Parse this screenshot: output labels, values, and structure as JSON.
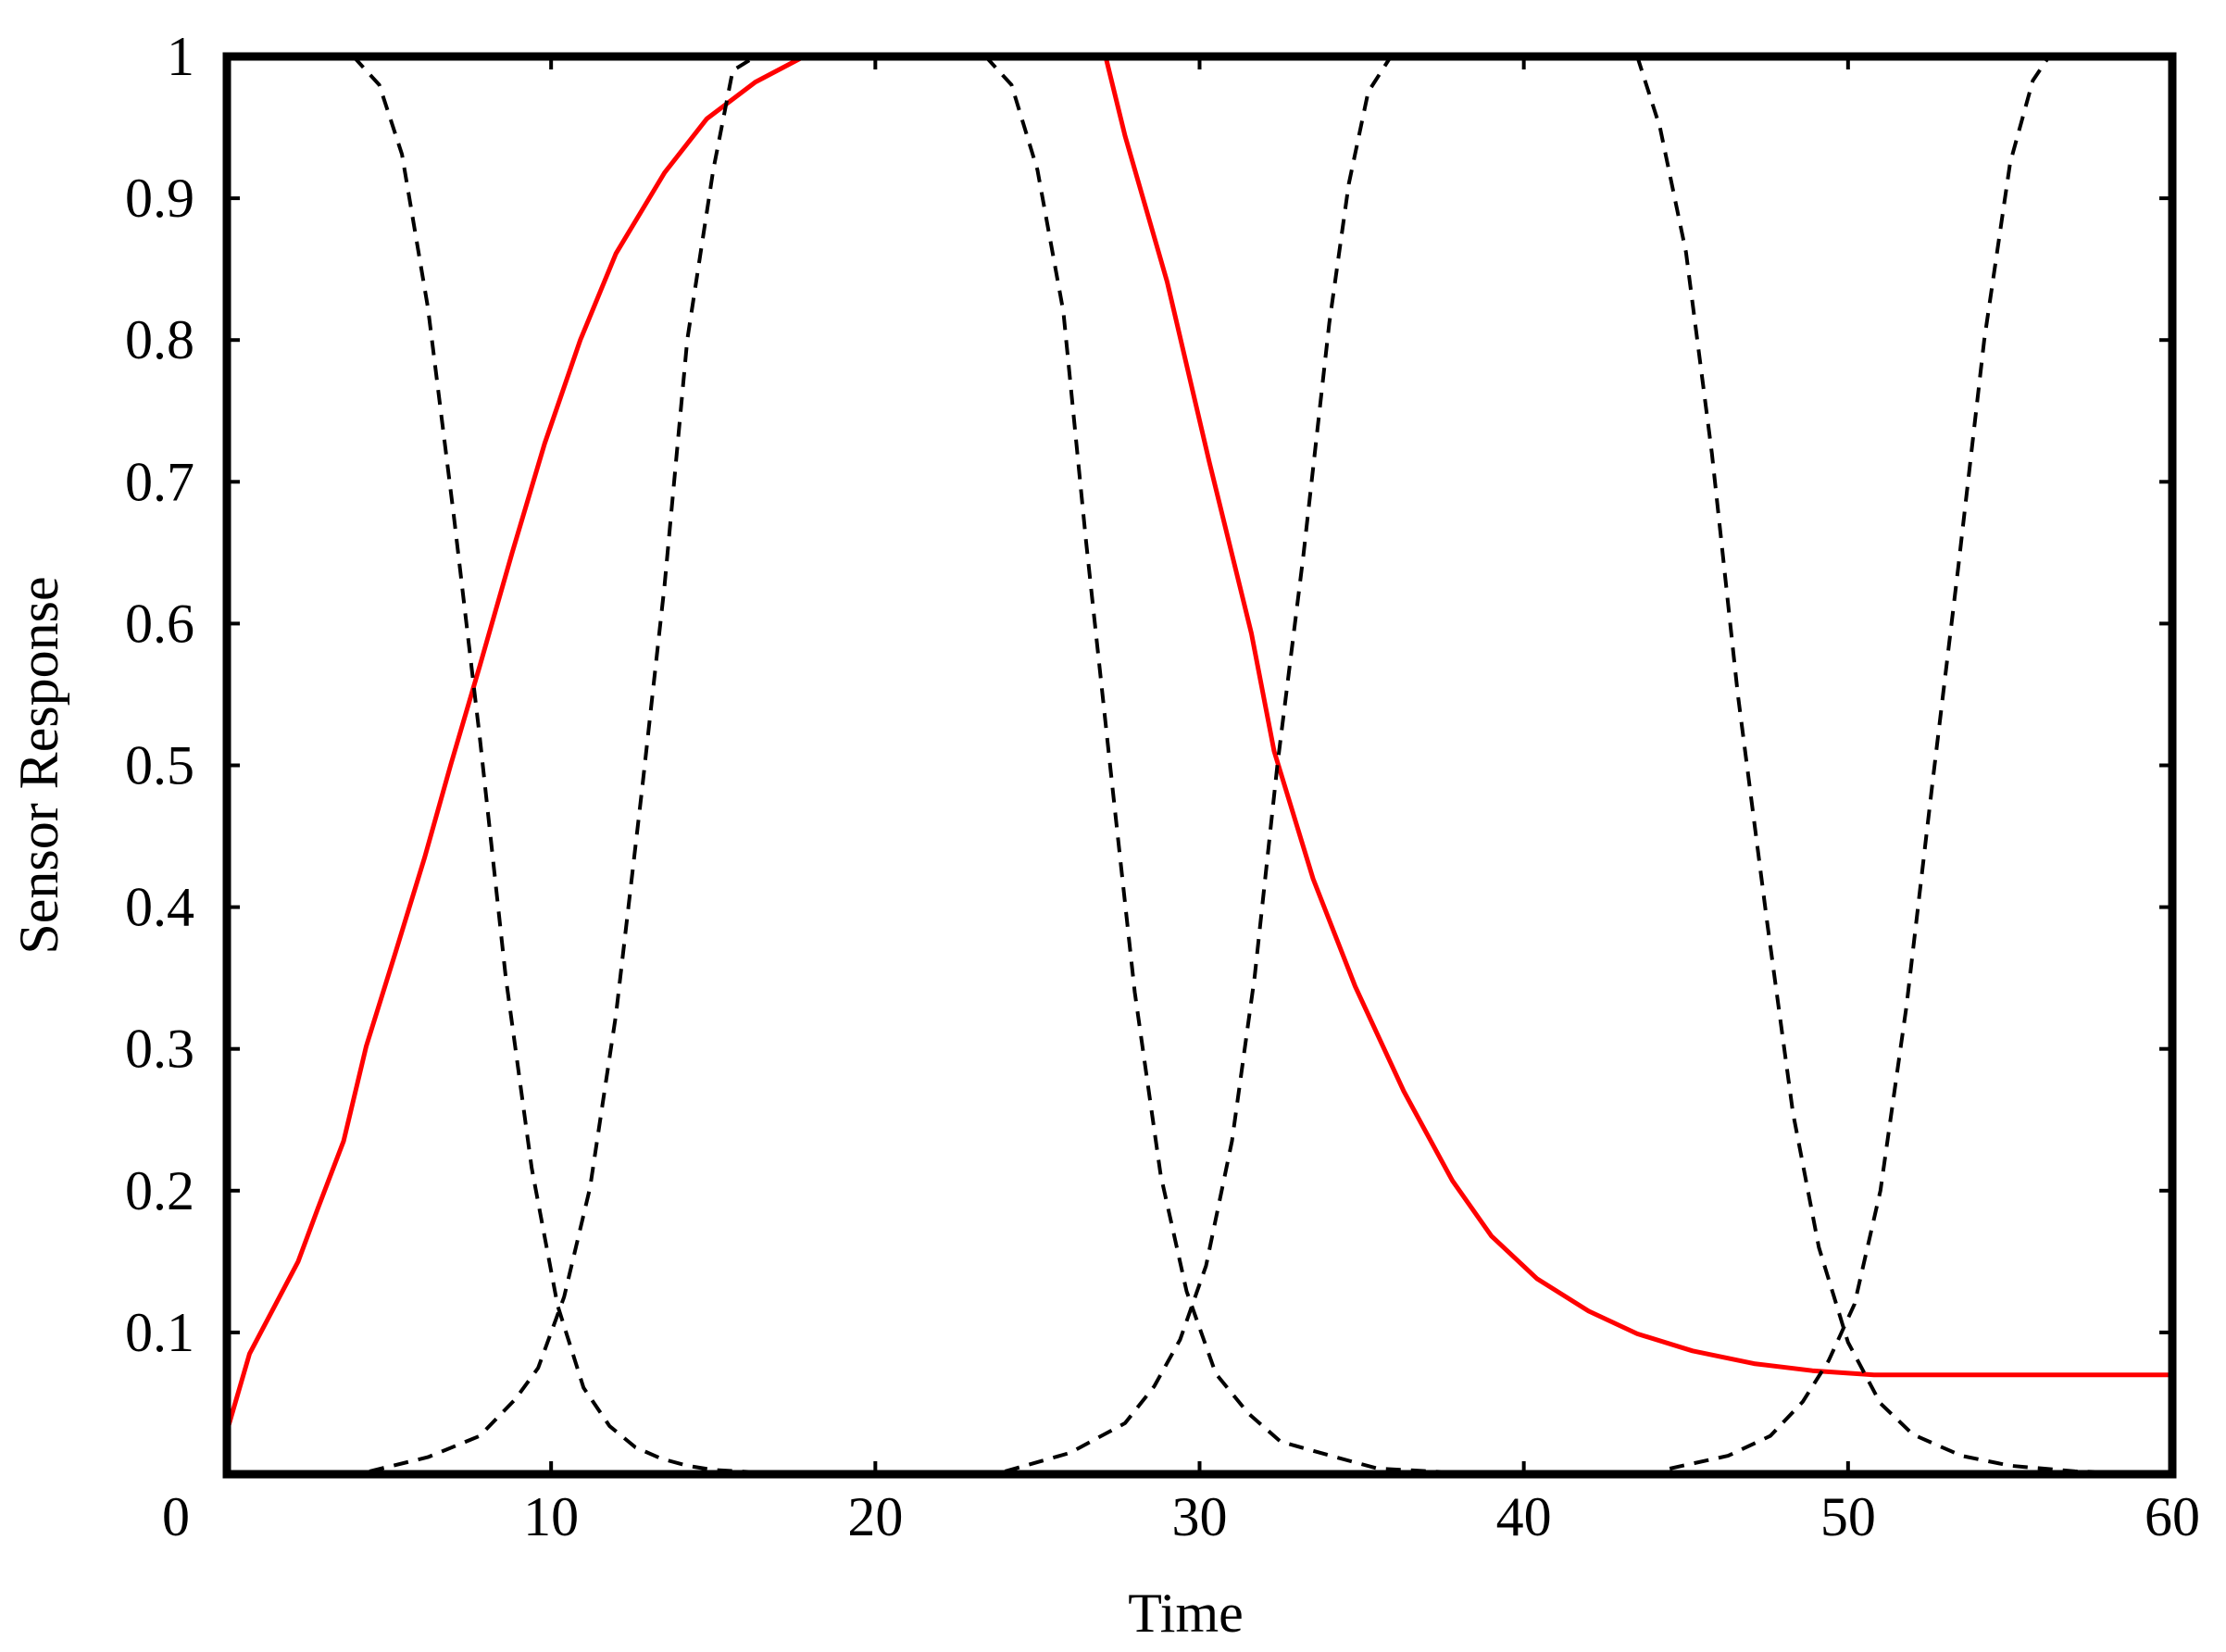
{
  "chart_data": {
    "type": "line",
    "title": "",
    "xlabel": "Time",
    "ylabel": "Sensor Response",
    "xlim": [
      0,
      60
    ],
    "ylim": [
      0,
      1
    ],
    "x_ticks": [
      0,
      10,
      20,
      30,
      40,
      50,
      60
    ],
    "x_tick_labels": [
      "0",
      "10",
      "20",
      "30",
      "40",
      "50",
      "60"
    ],
    "y_ticks": [
      0.1,
      0.2,
      0.3,
      0.4,
      0.5,
      0.6,
      0.7,
      0.8,
      0.9,
      1
    ],
    "y_tick_labels": [
      "0.1",
      "0.2",
      "0.3",
      "0.4",
      "0.5",
      "0.6",
      "0.7",
      "0.8",
      "0.9",
      "1"
    ],
    "grid": false,
    "legend": "none",
    "series": [
      {
        "color": "#ff0000",
        "style": "solid",
        "x": [
          0,
          0.7,
          2.2,
          2.8,
          3.6,
          4.3,
          5.2,
          6.1,
          6.9,
          7.8,
          8.8,
          9.8,
          10.9,
          12,
          13.5,
          14.8,
          16.3,
          17.8,
          19.2,
          21.6,
          24,
          26,
          27.1,
          27.7,
          29,
          30.3,
          31.6,
          32.3,
          33.5,
          34.8,
          36.3,
          37.8,
          39,
          40.4,
          42,
          43.5,
          45.2,
          47.1,
          48.9,
          50.8,
          52.7,
          55,
          57.5,
          60
        ],
        "y": [
          0.03,
          0.085,
          0.15,
          0.187,
          0.235,
          0.302,
          0.368,
          0.435,
          0.5,
          0.57,
          0.65,
          0.727,
          0.8,
          0.861,
          0.918,
          0.956,
          0.982,
          1.0,
          1.0,
          1.0,
          1.0,
          1.0,
          1.0,
          0.944,
          0.841,
          0.714,
          0.593,
          0.51,
          0.42,
          0.344,
          0.27,
          0.207,
          0.168,
          0.138,
          0.115,
          0.099,
          0.087,
          0.078,
          0.073,
          0.07,
          0.07,
          0.07,
          0.07,
          0.07
        ]
      },
      {
        "color": "#000000",
        "style": "dashed",
        "x": [
          3.9,
          4.7,
          5.4,
          6.2,
          7,
          7.8,
          8.6,
          9.4,
          10.2,
          11,
          11.8,
          12.6,
          13.4,
          14.2,
          15,
          15.8,
          16.6,
          18,
          20,
          23
        ],
        "y": [
          1.0,
          0.98,
          0.931,
          0.823,
          0.676,
          0.52,
          0.351,
          0.216,
          0.119,
          0.061,
          0.034,
          0.019,
          0.011,
          0.006,
          0.003,
          0.002,
          0.001,
          0.001,
          0.001,
          0.001
        ]
      },
      {
        "color": "#000000",
        "style": "dashed",
        "x": [
          4.4,
          6.2,
          7.8,
          8.9,
          9.6,
          10.4,
          11.2,
          12,
          12.8,
          13.5,
          14.2,
          15,
          15.6,
          16.3
        ],
        "y": [
          0.002,
          0.012,
          0.027,
          0.053,
          0.075,
          0.125,
          0.202,
          0.324,
          0.482,
          0.627,
          0.8,
          0.92,
          0.99,
          1.0
        ]
      },
      {
        "color": "#000000",
        "style": "dashed",
        "x": [
          23.4,
          24.2,
          25,
          25.8,
          26.5,
          27.3,
          28,
          28.8,
          29.6,
          30.5,
          31.5,
          32.5,
          34.2,
          35.5,
          38,
          42
        ],
        "y": [
          1.0,
          0.98,
          0.92,
          0.82,
          0.658,
          0.487,
          0.34,
          0.211,
          0.129,
          0.071,
          0.043,
          0.023,
          0.012,
          0.004,
          0.001,
          0.0
        ]
      },
      {
        "color": "#000000",
        "style": "dashed",
        "x": [
          24,
          26,
          27.7,
          28.6,
          29.4,
          30.2,
          31,
          31.7,
          32.4,
          33.2,
          34,
          34.6,
          35.2,
          35.9
        ],
        "y": [
          0.002,
          0.015,
          0.036,
          0.062,
          0.095,
          0.147,
          0.235,
          0.351,
          0.5,
          0.648,
          0.812,
          0.91,
          0.975,
          1.0
        ]
      },
      {
        "color": "#000000",
        "style": "dashed",
        "x": [
          43.5,
          44.2,
          45,
          45.8,
          46.6,
          47.5,
          48.3,
          49.1,
          50,
          51,
          52,
          53.5,
          55,
          57,
          60
        ],
        "y": [
          1.0,
          0.95,
          0.862,
          0.72,
          0.55,
          0.39,
          0.255,
          0.16,
          0.093,
          0.05,
          0.028,
          0.013,
          0.006,
          0.002,
          0.0
        ]
      },
      {
        "color": "#000000",
        "style": "dashed",
        "x": [
          44.5,
          46.3,
          47.6,
          48.6,
          49.4,
          50.2,
          51,
          51.8,
          52.6,
          53.4,
          54.2,
          55,
          55.7,
          56.2
        ],
        "y": [
          0.004,
          0.013,
          0.027,
          0.051,
          0.08,
          0.12,
          0.2,
          0.33,
          0.487,
          0.64,
          0.8,
          0.925,
          0.983,
          1.0
        ]
      }
    ]
  }
}
